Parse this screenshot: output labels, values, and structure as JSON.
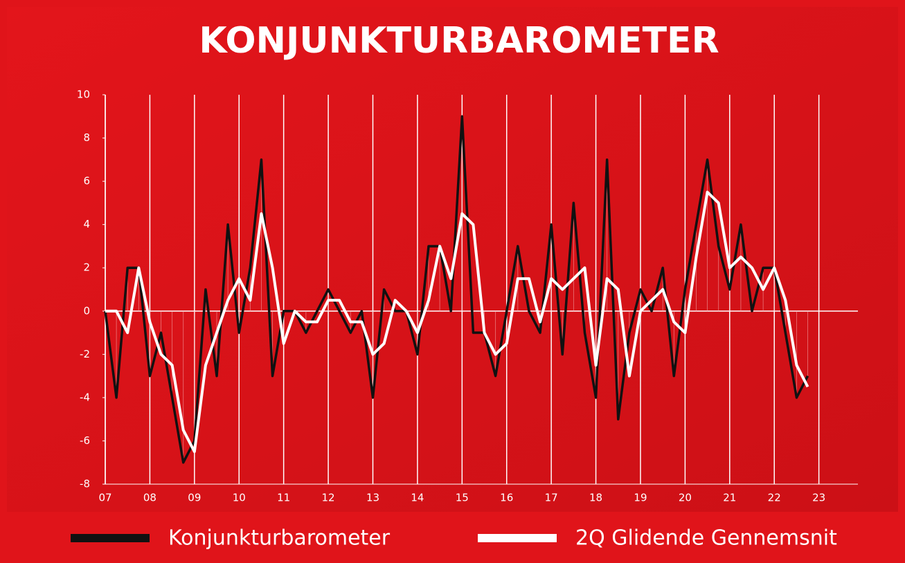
{
  "chart_data": {
    "type": "line",
    "title": "KONJUNKTURBAROMETER",
    "xlim": [
      0,
      67.5
    ],
    "xticks": [
      {
        "value": 0,
        "label": "07"
      },
      {
        "value": 4,
        "label": "08"
      },
      {
        "value": 8,
        "label": "09"
      },
      {
        "value": 12,
        "label": "10"
      },
      {
        "value": 16,
        "label": "11"
      },
      {
        "value": 20,
        "label": "12"
      },
      {
        "value": 24,
        "label": "13"
      },
      {
        "value": 28,
        "label": "14"
      },
      {
        "value": 32,
        "label": "15"
      },
      {
        "value": 36,
        "label": "16"
      },
      {
        "value": 40,
        "label": "17"
      },
      {
        "value": 44,
        "label": "18"
      },
      {
        "value": 48,
        "label": "19"
      },
      {
        "value": 52,
        "label": "20"
      },
      {
        "value": 56,
        "label": "21"
      },
      {
        "value": 60,
        "label": "22"
      },
      {
        "value": 64,
        "label": "23"
      }
    ],
    "ylim": [
      -8,
      10
    ],
    "yticks": [
      -8,
      -6,
      -4,
      -2,
      0,
      2,
      4,
      6,
      8,
      10
    ],
    "grid": true,
    "legend": "bottom",
    "series": [
      {
        "name": "Konjunkturbarometer",
        "color": "#111111",
        "values": [
          0,
          -4,
          2,
          2,
          -3,
          -1,
          -4,
          -7,
          -6,
          1,
          -3,
          4,
          -1,
          2,
          7,
          -3,
          0,
          0,
          -1,
          0,
          1,
          0,
          -1,
          0,
          -4,
          1,
          0,
          0,
          -2,
          3,
          3,
          0,
          9,
          -1,
          -1,
          -3,
          0,
          3,
          0,
          -1,
          4,
          -2,
          5,
          -1,
          -4,
          7,
          -5,
          -1,
          1,
          0,
          2,
          -3,
          1,
          4,
          7,
          3,
          1,
          4,
          0,
          2,
          2,
          -1,
          -4,
          -3
        ]
      },
      {
        "name": "2Q Glidende Gennemsnit",
        "color": "#ffffff",
        "values": [
          0,
          0,
          -1,
          2,
          -0.5,
          -2,
          -2.5,
          -5.5,
          -6.5,
          -2.5,
          -1,
          0.5,
          1.5,
          0.5,
          4.5,
          2,
          -1.5,
          0,
          -0.5,
          -0.5,
          0.5,
          0.5,
          -0.5,
          -0.5,
          -2,
          -1.5,
          0.5,
          0,
          -1,
          0.5,
          3,
          1.5,
          4.5,
          4,
          -1,
          -2,
          -1.5,
          1.5,
          1.5,
          -0.5,
          1.5,
          1,
          1.5,
          2,
          -2.5,
          1.5,
          1,
          -3,
          0,
          0.5,
          1,
          -0.5,
          -1,
          2.5,
          5.5,
          5,
          2,
          2.5,
          2,
          1,
          2,
          0.5,
          -2.5,
          -3.5
        ]
      }
    ]
  }
}
